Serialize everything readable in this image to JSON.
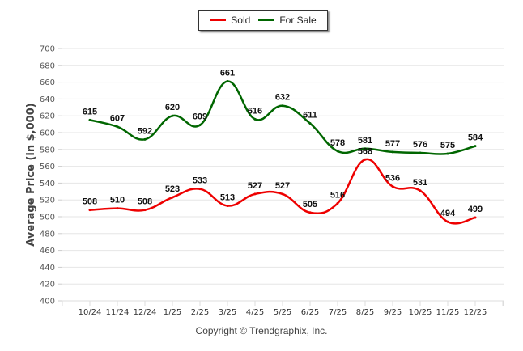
{
  "chart_data": {
    "type": "line",
    "title": "",
    "xlabel": "",
    "ylabel": "Average Price (in $,000)",
    "ylim": [
      400,
      700
    ],
    "yticks": [
      400,
      420,
      440,
      460,
      480,
      500,
      520,
      540,
      560,
      580,
      600,
      620,
      640,
      660,
      680,
      700
    ],
    "grid": true,
    "legend_position": "top-center",
    "categories": [
      "10/24",
      "11/24",
      "12/24",
      "1/25",
      "2/25",
      "3/25",
      "4/25",
      "5/25",
      "6/25",
      "7/25",
      "8/25",
      "9/25",
      "10/25",
      "11/25",
      "12/25"
    ],
    "series": [
      {
        "name": "Sold",
        "color": "#ee0000",
        "values": [
          508,
          510,
          508,
          523,
          533,
          513,
          527,
          527,
          505,
          516,
          568,
          536,
          531,
          494,
          499
        ]
      },
      {
        "name": "For Sale",
        "color": "#006600",
        "values": [
          615,
          607,
          592,
          620,
          609,
          661,
          616,
          632,
          611,
          578,
          581,
          577,
          576,
          575,
          584
        ]
      }
    ]
  },
  "footer": {
    "copyright": "Copyright © Trendgraphix, Inc."
  }
}
